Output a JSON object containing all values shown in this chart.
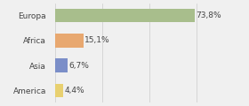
{
  "categories": [
    "Europa",
    "Africa",
    "Asia",
    "America"
  ],
  "values": [
    73.8,
    15.1,
    6.7,
    4.4
  ],
  "labels": [
    "73,8%",
    "15,1%",
    "6,7%",
    "4,4%"
  ],
  "bar_colors": [
    "#a8be8c",
    "#e8a870",
    "#7b8ec8",
    "#e8d070"
  ],
  "background_color": "#f0f0f0",
  "xlim": [
    0,
    100
  ],
  "label_fontsize": 6.5,
  "category_fontsize": 6.5,
  "bar_height": 0.55,
  "grid_ticks": [
    0,
    25,
    50,
    75,
    100
  ],
  "grid_color": "#cccccc"
}
